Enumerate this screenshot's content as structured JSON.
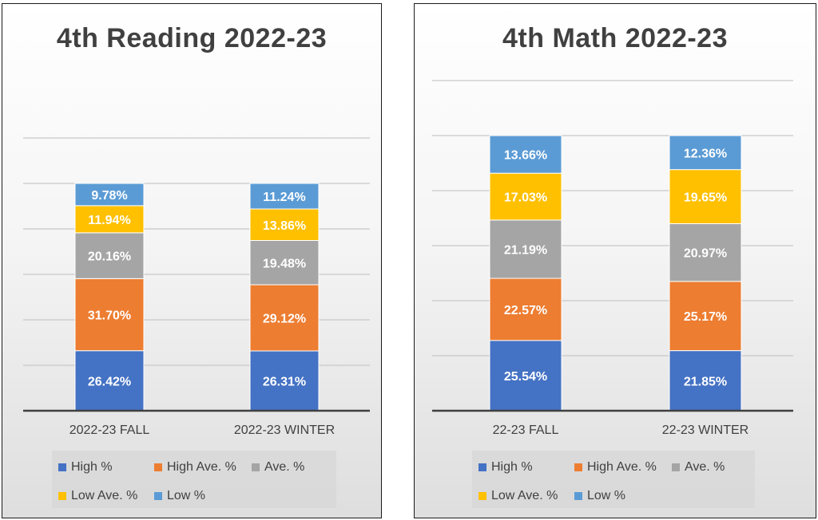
{
  "chart_data": [
    {
      "type": "stacked-bar",
      "title": "4th Reading 2022-23",
      "categories": [
        "2022-23 FALL",
        "2022-23 WINTER"
      ],
      "series": [
        {
          "name": "High %",
          "color": "#4472C4",
          "values": [
            26.42,
            26.31
          ],
          "labels": [
            "26.42%",
            "26.31%"
          ]
        },
        {
          "name": "High Ave. %",
          "color": "#ED7D31",
          "values": [
            31.7,
            29.12
          ],
          "labels": [
            "31.70%",
            "29.12%"
          ]
        },
        {
          "name": "Ave. %",
          "color": "#A5A5A5",
          "values": [
            20.16,
            19.48
          ],
          "labels": [
            "20.16%",
            "19.48%"
          ]
        },
        {
          "name": "Low Ave. %",
          "color": "#FFC000",
          "values": [
            11.94,
            13.86
          ],
          "labels": [
            "11.94%",
            "13.86%"
          ]
        },
        {
          "name": "Low %",
          "color": "#5B9BD5",
          "values": [
            9.78,
            11.24
          ],
          "labels": [
            "9.78%",
            "11.24%"
          ]
        }
      ],
      "ylim": [
        0,
        120
      ],
      "grid": true,
      "legend_position": "bottom"
    },
    {
      "type": "stacked-bar",
      "title": "4th Math 2022-23",
      "categories": [
        "22-23 FALL",
        "22-23 WINTER"
      ],
      "series": [
        {
          "name": "High %",
          "color": "#4472C4",
          "values": [
            25.54,
            21.85
          ],
          "labels": [
            "25.54%",
            "21.85%"
          ]
        },
        {
          "name": "High Ave. %",
          "color": "#ED7D31",
          "values": [
            22.57,
            25.17
          ],
          "labels": [
            "22.57%",
            "25.17%"
          ]
        },
        {
          "name": "Ave. %",
          "color": "#A5A5A5",
          "values": [
            21.19,
            20.97
          ],
          "labels": [
            "21.19%",
            "20.97%"
          ]
        },
        {
          "name": "Low Ave. %",
          "color": "#FFC000",
          "values": [
            17.03,
            19.65
          ],
          "labels": [
            "17.03%",
            "19.65%"
          ]
        },
        {
          "name": "Low %",
          "color": "#5B9BD5",
          "values": [
            13.66,
            12.36
          ],
          "labels": [
            "13.66%",
            "12.36%"
          ]
        }
      ],
      "ylim": [
        0,
        120
      ],
      "grid": true,
      "legend_position": "bottom"
    }
  ]
}
